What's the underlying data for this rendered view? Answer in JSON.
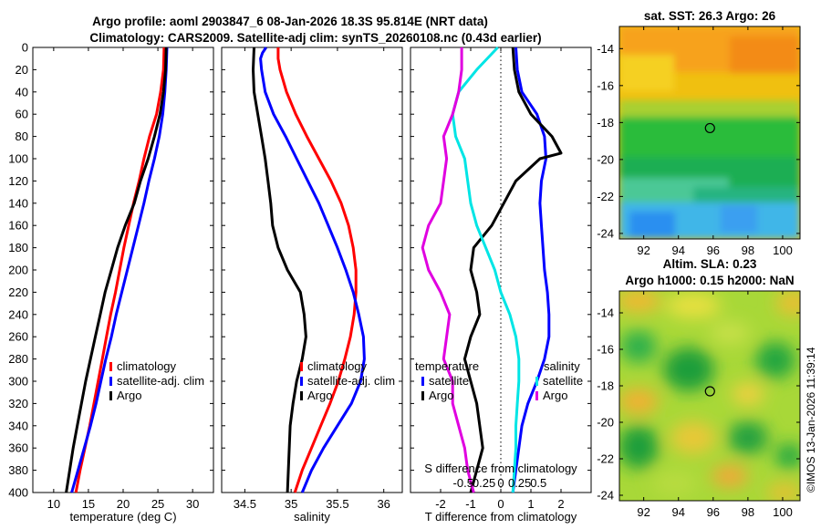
{
  "figure": {
    "title_line1": "Argo profile: aoml 2903847_6 08-Jan-2026 18.3S 95.814E (NRT data)",
    "title_line2": "Climatology: CARS2009. Satellite-adj clim: synTS_20260108.nc (0.43d earlier)",
    "watermark": "©IMOS 13-Jan-2026 11:39:14"
  },
  "colors": {
    "climatology": "#ff0000",
    "satellite": "#0000ff",
    "argo": "#000000",
    "cyan": "#00e5e5",
    "magenta": "#e000e0"
  },
  "chart_data": [
    {
      "type": "line",
      "id": "temperature",
      "xlabel": "temperature (deg C)",
      "xlim": [
        7,
        33
      ],
      "ylim": [
        400,
        0
      ],
      "xticks": [
        10,
        15,
        20,
        25,
        30
      ],
      "yticks": [
        0,
        20,
        40,
        60,
        80,
        100,
        120,
        140,
        160,
        180,
        200,
        220,
        240,
        260,
        280,
        300,
        320,
        340,
        360,
        380,
        400
      ],
      "legend": [
        "climatology",
        "satellite-adj. clim",
        "Argo"
      ],
      "series": [
        {
          "name": "climatology",
          "color": "#ff0000",
          "points": [
            [
              25.9,
              0
            ],
            [
              25.8,
              20
            ],
            [
              25.4,
              40
            ],
            [
              24.8,
              60
            ],
            [
              23.8,
              80
            ],
            [
              23.0,
              100
            ],
            [
              22.3,
              120
            ],
            [
              21.5,
              140
            ],
            [
              20.8,
              160
            ],
            [
              20.1,
              180
            ],
            [
              19.5,
              200
            ],
            [
              18.9,
              220
            ],
            [
              18.2,
              240
            ],
            [
              17.6,
              260
            ],
            [
              17.0,
              280
            ],
            [
              16.4,
              300
            ],
            [
              15.8,
              320
            ],
            [
              15.2,
              340
            ],
            [
              14.5,
              360
            ],
            [
              13.8,
              380
            ],
            [
              13.2,
              400
            ]
          ]
        },
        {
          "name": "satellite-adj. clim",
          "color": "#0000ff",
          "points": [
            [
              26.3,
              0
            ],
            [
              26.2,
              20
            ],
            [
              26.0,
              40
            ],
            [
              25.7,
              60
            ],
            [
              25.2,
              80
            ],
            [
              24.5,
              100
            ],
            [
              23.7,
              120
            ],
            [
              23.0,
              140
            ],
            [
              22.2,
              160
            ],
            [
              21.4,
              180
            ],
            [
              20.6,
              200
            ],
            [
              19.8,
              220
            ],
            [
              19.0,
              240
            ],
            [
              18.3,
              260
            ],
            [
              17.5,
              280
            ],
            [
              16.8,
              300
            ],
            [
              16.1,
              320
            ],
            [
              15.3,
              340
            ],
            [
              14.4,
              360
            ],
            [
              13.5,
              380
            ],
            [
              12.6,
              400
            ]
          ]
        },
        {
          "name": "Argo",
          "color": "#000000",
          "points": [
            [
              26.2,
              0
            ],
            [
              26.1,
              20
            ],
            [
              25.8,
              40
            ],
            [
              25.3,
              60
            ],
            [
              24.5,
              80
            ],
            [
              23.6,
              100
            ],
            [
              22.5,
              120
            ],
            [
              21.6,
              140
            ],
            [
              20.3,
              160
            ],
            [
              19.2,
              180
            ],
            [
              18.3,
              200
            ],
            [
              17.4,
              220
            ],
            [
              16.7,
              240
            ],
            [
              16.0,
              260
            ],
            [
              15.3,
              280
            ],
            [
              14.6,
              300
            ],
            [
              14.0,
              320
            ],
            [
              13.4,
              340
            ],
            [
              12.8,
              360
            ],
            [
              12.3,
              380
            ],
            [
              11.8,
              400
            ]
          ]
        }
      ]
    },
    {
      "type": "line",
      "id": "salinity",
      "xlabel": "salinity",
      "xlim": [
        34.25,
        36.2
      ],
      "ylim": [
        400,
        0
      ],
      "xticks": [
        34.5,
        35,
        35.5,
        36
      ],
      "legend": [
        "climatology",
        "satellite-adj. clim",
        "Argo"
      ],
      "series": [
        {
          "name": "climatology",
          "color": "#ff0000",
          "points": [
            [
              34.86,
              0
            ],
            [
              34.86,
              10
            ],
            [
              34.88,
              20
            ],
            [
              34.95,
              40
            ],
            [
              35.05,
              60
            ],
            [
              35.17,
              80
            ],
            [
              35.3,
              100
            ],
            [
              35.43,
              120
            ],
            [
              35.54,
              140
            ],
            [
              35.62,
              160
            ],
            [
              35.67,
              180
            ],
            [
              35.7,
              200
            ],
            [
              35.7,
              220
            ],
            [
              35.68,
              240
            ],
            [
              35.64,
              260
            ],
            [
              35.58,
              280
            ],
            [
              35.51,
              300
            ],
            [
              35.42,
              320
            ],
            [
              35.32,
              340
            ],
            [
              35.22,
              360
            ],
            [
              35.12,
              380
            ],
            [
              35.04,
              400
            ]
          ]
        },
        {
          "name": "satellite-adj. clim",
          "color": "#0000ff",
          "points": [
            [
              34.73,
              0
            ],
            [
              34.69,
              5
            ],
            [
              34.67,
              10
            ],
            [
              34.68,
              20
            ],
            [
              34.72,
              40
            ],
            [
              34.81,
              60
            ],
            [
              34.94,
              80
            ],
            [
              35.06,
              100
            ],
            [
              35.18,
              120
            ],
            [
              35.3,
              140
            ],
            [
              35.4,
              160
            ],
            [
              35.5,
              180
            ],
            [
              35.59,
              200
            ],
            [
              35.67,
              220
            ],
            [
              35.73,
              240
            ],
            [
              35.78,
              260
            ],
            [
              35.79,
              280
            ],
            [
              35.75,
              300
            ],
            [
              35.65,
              320
            ],
            [
              35.5,
              340
            ],
            [
              35.35,
              360
            ],
            [
              35.22,
              380
            ],
            [
              35.12,
              400
            ]
          ]
        },
        {
          "name": "Argo",
          "color": "#000000",
          "points": [
            [
              34.6,
              0
            ],
            [
              34.59,
              20
            ],
            [
              34.6,
              40
            ],
            [
              34.64,
              60
            ],
            [
              34.68,
              80
            ],
            [
              34.72,
              100
            ],
            [
              34.75,
              120
            ],
            [
              34.78,
              140
            ],
            [
              34.8,
              160
            ],
            [
              34.86,
              180
            ],
            [
              34.96,
              200
            ],
            [
              35.1,
              220
            ],
            [
              35.14,
              240
            ],
            [
              35.16,
              260
            ],
            [
              35.12,
              280
            ],
            [
              35.06,
              300
            ],
            [
              35.02,
              320
            ],
            [
              34.99,
              340
            ],
            [
              34.98,
              360
            ],
            [
              34.97,
              380
            ],
            [
              34.96,
              400
            ]
          ]
        }
      ]
    },
    {
      "type": "line",
      "id": "difference",
      "xlabel": "T difference from climatology",
      "top_axis_label": "S difference from climatology",
      "xlim": [
        -3,
        3
      ],
      "ylim": [
        400,
        0
      ],
      "xticks": [
        -2,
        -1,
        0,
        1,
        2
      ],
      "top_ticks": [
        "-0.5",
        "-0.25",
        "0",
        "0.25",
        "0.5"
      ],
      "legend_left_title": "temperature",
      "legend_left": [
        "satellite",
        "Argo"
      ],
      "legend_right_title": "salinity",
      "legend_right": [
        "satellite",
        "Argo"
      ],
      "series": [
        {
          "name": "T satellite",
          "color": "#0000ff",
          "points": [
            [
              0.5,
              0
            ],
            [
              0.55,
              20
            ],
            [
              0.7,
              40
            ],
            [
              1.2,
              60
            ],
            [
              1.45,
              80
            ],
            [
              1.5,
              100
            ],
            [
              1.35,
              120
            ],
            [
              1.3,
              140
            ],
            [
              1.35,
              160
            ],
            [
              1.4,
              180
            ],
            [
              1.45,
              200
            ],
            [
              1.55,
              220
            ],
            [
              1.6,
              240
            ],
            [
              1.6,
              260
            ],
            [
              1.45,
              280
            ],
            [
              1.2,
              300
            ],
            [
              0.9,
              320
            ],
            [
              0.7,
              340
            ],
            [
              0.6,
              360
            ],
            [
              0.5,
              380
            ],
            [
              0.4,
              400
            ]
          ]
        },
        {
          "name": "T Argo",
          "color": "#000000",
          "points": [
            [
              0.4,
              0
            ],
            [
              0.45,
              20
            ],
            [
              0.6,
              40
            ],
            [
              1.0,
              60
            ],
            [
              1.7,
              80
            ],
            [
              2.0,
              95
            ],
            [
              1.3,
              100
            ],
            [
              0.5,
              120
            ],
            [
              0.1,
              140
            ],
            [
              -0.3,
              160
            ],
            [
              -0.9,
              180
            ],
            [
              -1.0,
              200
            ],
            [
              -0.8,
              220
            ],
            [
              -0.7,
              240
            ],
            [
              -1.0,
              260
            ],
            [
              -1.2,
              280
            ],
            [
              -1.0,
              300
            ],
            [
              -0.8,
              320
            ],
            [
              -0.7,
              340
            ],
            [
              -0.6,
              360
            ],
            [
              -0.8,
              380
            ],
            [
              -1.0,
              400
            ]
          ]
        },
        {
          "name": "S satellite",
          "color": "#00e5e5",
          "points": [
            [
              -0.1,
              0
            ],
            [
              -0.8,
              20
            ],
            [
              -1.4,
              40
            ],
            [
              -1.6,
              60
            ],
            [
              -1.5,
              80
            ],
            [
              -1.2,
              100
            ],
            [
              -1.1,
              120
            ],
            [
              -1.0,
              140
            ],
            [
              -0.8,
              160
            ],
            [
              -0.5,
              180
            ],
            [
              -0.2,
              200
            ],
            [
              0.0,
              220
            ],
            [
              0.3,
              240
            ],
            [
              0.5,
              260
            ],
            [
              0.6,
              280
            ],
            [
              0.6,
              300
            ],
            [
              0.55,
              320
            ],
            [
              0.5,
              340
            ],
            [
              0.5,
              360
            ],
            [
              0.45,
              380
            ],
            [
              0.4,
              400
            ]
          ]
        },
        {
          "name": "S Argo",
          "color": "#e000e0",
          "points": [
            [
              -1.3,
              0
            ],
            [
              -1.3,
              20
            ],
            [
              -1.4,
              40
            ],
            [
              -1.6,
              60
            ],
            [
              -1.9,
              80
            ],
            [
              -1.8,
              100
            ],
            [
              -1.9,
              120
            ],
            [
              -2.0,
              140
            ],
            [
              -2.4,
              160
            ],
            [
              -2.6,
              180
            ],
            [
              -2.4,
              200
            ],
            [
              -2.0,
              220
            ],
            [
              -1.7,
              240
            ],
            [
              -1.8,
              260
            ],
            [
              -1.9,
              280
            ],
            [
              -1.6,
              300
            ],
            [
              -1.6,
              320
            ],
            [
              -1.4,
              340
            ],
            [
              -1.2,
              360
            ],
            [
              -1.1,
              380
            ],
            [
              -0.9,
              400
            ]
          ]
        }
      ]
    },
    {
      "type": "heatmap",
      "id": "sst_map",
      "title": "sat. SST: 26.3 Argo: 26",
      "xticks": [
        "92",
        "94",
        "96",
        "98",
        "100"
      ],
      "yticks": [
        "-14",
        "-16",
        "-18",
        "-20",
        "-22",
        "-24"
      ],
      "xlim": [
        90.6,
        101.0
      ],
      "ylim": [
        -24.3,
        -12.8
      ],
      "profile_location": [
        95.814,
        -18.3
      ]
    },
    {
      "type": "heatmap",
      "id": "sla_map",
      "title_line1": "Altim. SLA: 0.23",
      "title_line2": "Argo h1000: 0.15 h2000: NaN",
      "xticks": [
        "92",
        "94",
        "96",
        "98",
        "100"
      ],
      "yticks": [
        "-14",
        "-16",
        "-18",
        "-20",
        "-22",
        "-24"
      ],
      "xlim": [
        90.6,
        101.0
      ],
      "ylim": [
        -24.3,
        -12.8
      ],
      "profile_location": [
        95.814,
        -18.3
      ]
    }
  ]
}
